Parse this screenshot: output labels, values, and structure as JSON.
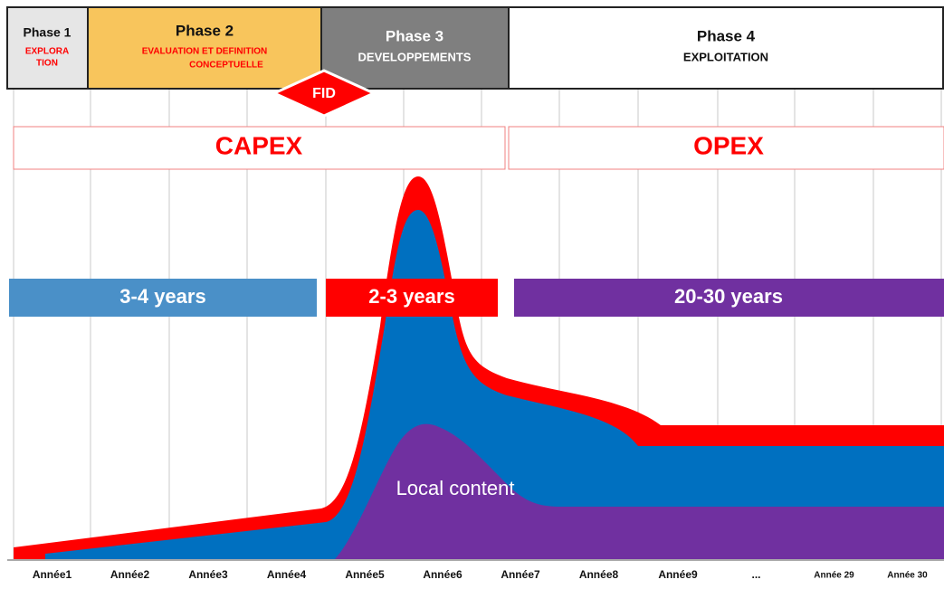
{
  "phases": [
    {
      "name": "Phase 1",
      "subtitle_lines": [
        "EXPLORA",
        "TION"
      ]
    },
    {
      "name": "Phase 2",
      "subtitle_lines": [
        "EVALUATION  ET DEFINITION",
        "CONCEPTUELLE"
      ]
    },
    {
      "name": "Phase 3",
      "subtitle_lines": [
        "DEVELOPPEMENTS"
      ]
    },
    {
      "name": "Phase 4",
      "subtitle_lines": [
        "EXPLOITATION"
      ]
    }
  ],
  "fid": "FID",
  "capex": "CAPEX",
  "opex": "OPEX",
  "durations": [
    "3-4 years",
    "2-3 years",
    "20-30 years"
  ],
  "local_content": "Local content",
  "years": [
    "Année1",
    "Année2",
    "Année3",
    "Année4",
    "Année5",
    "Année6",
    "Année7",
    "Année8",
    "Année9",
    "...",
    "Année 29",
    "Année 30"
  ]
}
